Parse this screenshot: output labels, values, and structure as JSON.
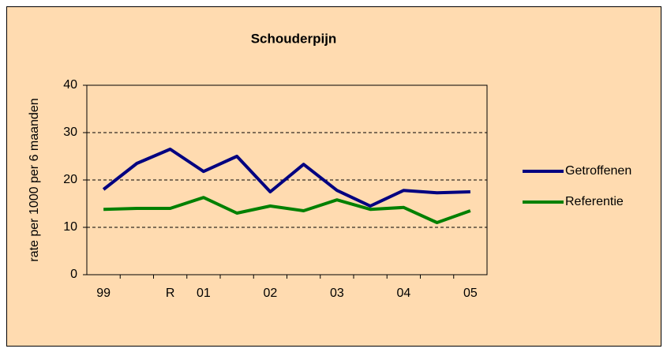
{
  "chart_data": {
    "type": "line",
    "title": "Schouderpijn",
    "y_label": "rate per 1000 per 6 maanden",
    "categories": [
      "99",
      null,
      "R",
      "01",
      null,
      "02",
      null,
      "03",
      null,
      "04",
      null,
      "05"
    ],
    "series": [
      {
        "name": "Getroffenen",
        "color": "#000080",
        "values": [
          18,
          23.5,
          26.5,
          21.8,
          25,
          17.5,
          23.3,
          17.8,
          14.5,
          17.8,
          17.3,
          17.5
        ]
      },
      {
        "name": "Referentie",
        "color": "#008000",
        "values": [
          13.8,
          14,
          14,
          16.3,
          13,
          14.5,
          13.5,
          15.8,
          13.8,
          14.2,
          11,
          13.5
        ]
      }
    ],
    "ylim": [
      0,
      40
    ],
    "yticks": [
      0,
      10,
      20,
      30,
      40
    ],
    "grid": true,
    "legend": "right"
  }
}
